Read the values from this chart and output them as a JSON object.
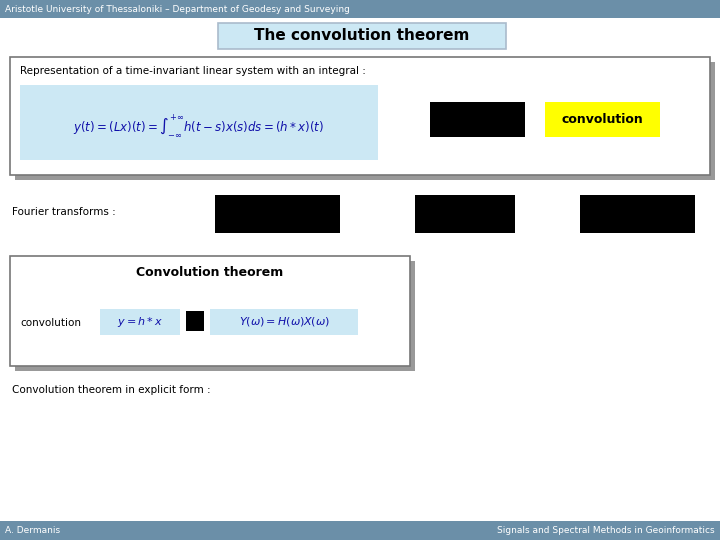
{
  "header_text": "Aristotle University of Thessaloniki – Department of Geodesy and Surveying",
  "header_bg": "#6b8fa8",
  "header_text_color": "#ffffff",
  "title_text": "The convolution theorem",
  "title_bg": "#cce8f4",
  "title_border": "#aabbcc",
  "slide_bg": "#ffffff",
  "box1_text": "Representation of a time-invariant linear system with an integral :",
  "formula1": "$y(t) = (Lx)(t) = \\int_{-\\infty}^{+\\infty} h(t-s)x(s)ds = (h * x)(t)$",
  "formula1_bg": "#cce8f4",
  "convolution_label": "convolution",
  "convolution_bg": "#ffff00",
  "fourier_label": "Fourier transforms :",
  "box2_title": "Convolution theorem",
  "convolution2_label": "convolution",
  "formula2": "$y = h * x$",
  "formula2_bg": "#cce8f4",
  "formula3": "$Y(\\omega) = H(\\omega)X(\\omega)$",
  "formula3_bg": "#cce8f4",
  "footer_left": "A. Dermanis",
  "footer_right": "Signals and Spectral Methods in Geoinformatics",
  "footer_bg": "#6b8fa8",
  "footer_text_color": "#ffffff",
  "explicit_form_text": "Convolution theorem in explicit form :"
}
